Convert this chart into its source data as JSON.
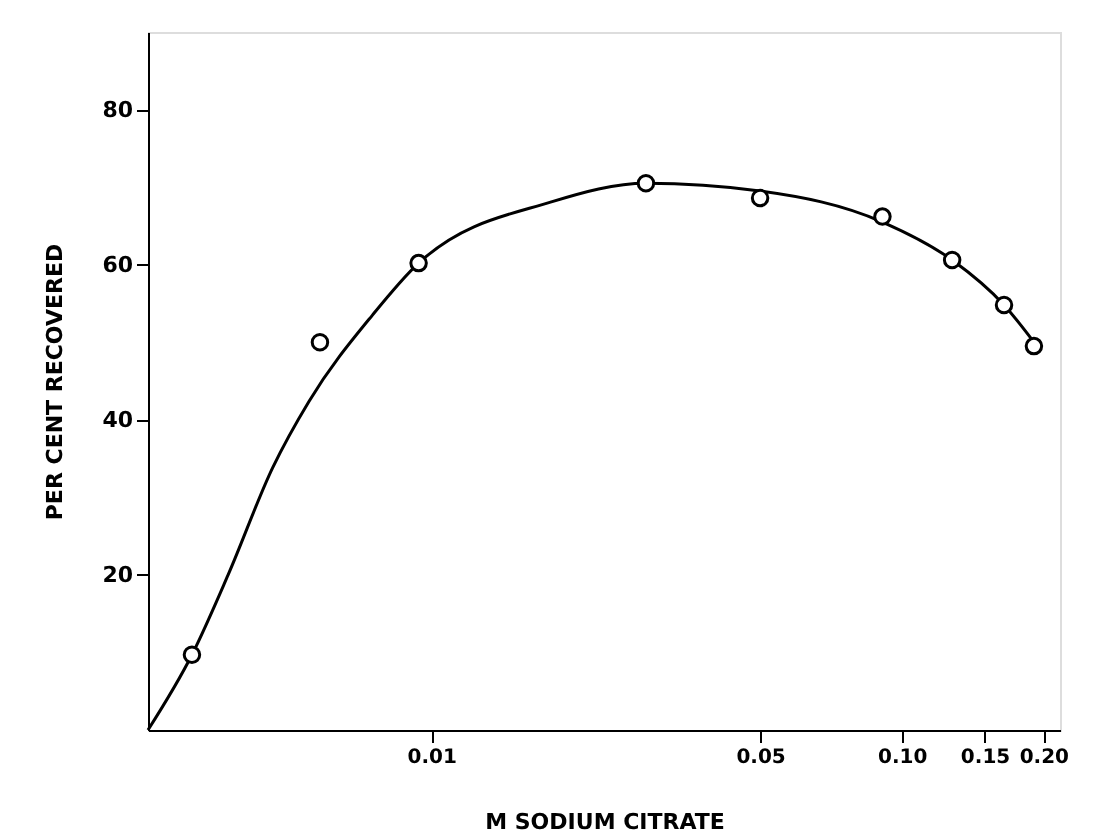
{
  "chart_data": {
    "type": "scatter",
    "xlabel": "M    SODIUM CITRATE",
    "ylabel": "PER CENT RECOVERED",
    "xlim": [
      0.0025,
      0.217
    ],
    "ylim": [
      0,
      90
    ],
    "xticks": [
      {
        "value": 0.01,
        "label": "0.01"
      },
      {
        "value": 0.05,
        "label": "0.05"
      },
      {
        "value": 0.1,
        "label": "0.10"
      },
      {
        "value": 0.15,
        "label": "0.15"
      },
      {
        "value": 0.2,
        "label": "0.20"
      }
    ],
    "yticks": [
      20,
      40,
      60,
      80
    ],
    "grid": false,
    "log": "x",
    "series": [
      {
        "marker": "circle",
        "color": "#000000",
        "x": [
          0.0031,
          0.0058,
          0.0094,
          0.0286,
          0.05,
          0.091,
          0.128,
          0.165,
          0.191
        ],
        "values": [
          9.7,
          50,
          60.2,
          70.5,
          68.6,
          66.2,
          60.6,
          54.8,
          49.5
        ]
      },
      {
        "type": "line",
        "marker": "none",
        "line_style": "solid",
        "color": "#000000",
        "x": [
          0.0025,
          0.0031,
          0.0037,
          0.0046,
          0.0055,
          0.0075,
          0.0094,
          0.018,
          0.0286,
          0.05,
          0.091,
          0.128,
          0.165,
          0.191
        ],
        "values": [
          0,
          9.7,
          20,
          33.8,
          42.4,
          53.5,
          60.2,
          68.1,
          70.5,
          69.5,
          65.5,
          60.6,
          54.8,
          50
        ]
      }
    ]
  }
}
